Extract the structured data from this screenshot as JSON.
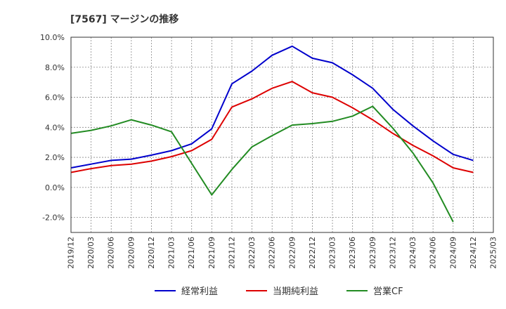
{
  "title": "[7567]  マージンの推移",
  "chart_data": {
    "type": "line",
    "title": "[7567]  マージンの推移",
    "x_labels": [
      "2019/12",
      "2020/03",
      "2020/06",
      "2020/09",
      "2020/12",
      "2021/03",
      "2021/06",
      "2021/09",
      "2021/12",
      "2022/03",
      "2022/06",
      "2022/09",
      "2022/12",
      "2023/03",
      "2023/06",
      "2023/09",
      "2023/12",
      "2024/03",
      "2024/06",
      "2024/09",
      "2024/12",
      "2025/03"
    ],
    "y_ticks": [
      "10.0%",
      "8.0%",
      "6.0%",
      "4.0%",
      "2.0%",
      "0.0%",
      "-2.0%"
    ],
    "ylim": [
      -3.0,
      10.0
    ],
    "y_unit": "%",
    "grid": true,
    "legend_position": "bottom",
    "x": [
      "2019/12",
      "2020/03",
      "2020/06",
      "2020/09",
      "2020/12",
      "2021/03",
      "2021/06",
      "2021/09",
      "2021/12",
      "2022/03",
      "2022/06",
      "2022/09",
      "2022/12",
      "2023/03",
      "2023/06",
      "2023/09",
      "2023/12",
      "2024/03",
      "2024/06",
      "2024/09",
      "2024/12"
    ],
    "series": [
      {
        "name": "経常利益",
        "color": "#0000cc",
        "values": [
          1.3,
          1.55,
          1.8,
          1.88,
          2.15,
          2.45,
          2.9,
          3.9,
          6.9,
          7.75,
          8.8,
          9.4,
          8.6,
          8.3,
          7.5,
          6.6,
          5.2,
          4.1,
          3.1,
          2.2,
          1.8
        ]
      },
      {
        "name": "当期純利益",
        "color": "#dd0000",
        "values": [
          1.0,
          1.25,
          1.45,
          1.55,
          1.75,
          2.05,
          2.45,
          3.2,
          5.35,
          5.9,
          6.6,
          7.05,
          6.3,
          6.0,
          5.3,
          4.5,
          3.6,
          2.8,
          2.1,
          1.3,
          1.0
        ]
      },
      {
        "name": "営業CF",
        "color": "#228b22",
        "values": [
          3.6,
          3.8,
          4.1,
          4.5,
          4.15,
          3.7,
          1.6,
          -0.5,
          1.2,
          2.7,
          3.45,
          4.15,
          4.25,
          4.4,
          4.75,
          5.4,
          3.95,
          2.3,
          0.3,
          -2.3,
          null
        ]
      }
    ]
  }
}
